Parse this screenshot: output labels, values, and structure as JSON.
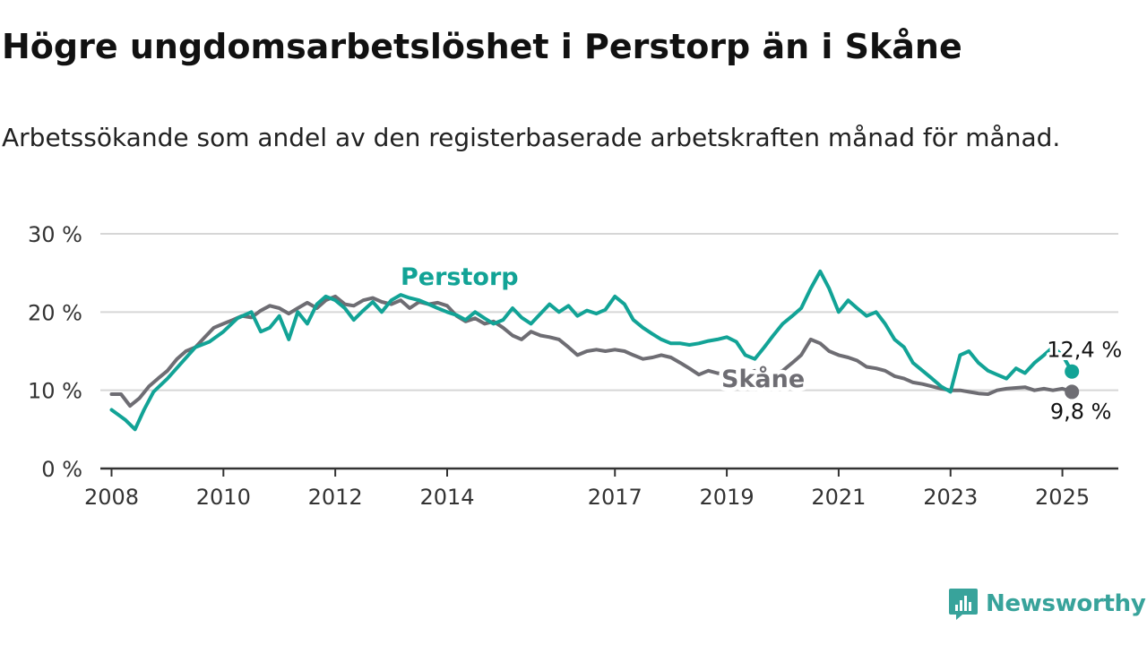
{
  "title": "Högre ungdomsarbetslöshet i Perstorp än i Skåne",
  "subtitle": "Arbetssökande som andel av den registerbaserade arbetskraften månad för månad.",
  "brand": {
    "name": "Newsworthy",
    "color": "#38a39b"
  },
  "colors": {
    "perstorp": "#12a396",
    "skane": "#6e6d73",
    "grid": "#d6d6d6",
    "axis": "#333333"
  },
  "chart_data": {
    "type": "line",
    "title": "Högre ungdomsarbetslöshet i Perstorp än i Skåne",
    "subtitle": "Arbetssökande som andel av den registerbaserade arbetskraften månad för månad.",
    "xlabel": "",
    "ylabel": "",
    "x_ticks": [
      "2008",
      "2010",
      "2012",
      "2014",
      "2017",
      "2019",
      "2021",
      "2023",
      "2025"
    ],
    "y_ticks": [
      "0 %",
      "10 %",
      "20 %",
      "30 %"
    ],
    "ylim": [
      0,
      30
    ],
    "xlim": [
      2007.8,
      2026.0
    ],
    "grid": true,
    "series": [
      {
        "name": "Perstorp",
        "color": "#12a396",
        "end_label": "12,4 %",
        "points": [
          [
            2008.0,
            7.5
          ],
          [
            2008.25,
            6.2
          ],
          [
            2008.42,
            5.0
          ],
          [
            2008.58,
            7.5
          ],
          [
            2008.75,
            9.8
          ],
          [
            2009.0,
            11.5
          ],
          [
            2009.25,
            13.5
          ],
          [
            2009.5,
            15.5
          ],
          [
            2009.75,
            16.2
          ],
          [
            2010.0,
            17.5
          ],
          [
            2010.25,
            19.2
          ],
          [
            2010.5,
            20.0
          ],
          [
            2010.67,
            17.5
          ],
          [
            2010.83,
            18.0
          ],
          [
            2011.0,
            19.5
          ],
          [
            2011.17,
            16.5
          ],
          [
            2011.33,
            20.0
          ],
          [
            2011.5,
            18.5
          ],
          [
            2011.67,
            21.0
          ],
          [
            2011.83,
            22.0
          ],
          [
            2012.0,
            21.5
          ],
          [
            2012.17,
            20.5
          ],
          [
            2012.33,
            19.0
          ],
          [
            2012.5,
            20.2
          ],
          [
            2012.67,
            21.3
          ],
          [
            2012.83,
            20.0
          ],
          [
            2013.0,
            21.5
          ],
          [
            2013.17,
            22.2
          ],
          [
            2013.33,
            21.8
          ],
          [
            2013.5,
            21.5
          ],
          [
            2013.67,
            21.0
          ],
          [
            2013.83,
            20.5
          ],
          [
            2014.0,
            20.0
          ],
          [
            2014.17,
            19.6
          ],
          [
            2014.33,
            19.0
          ],
          [
            2014.5,
            20.0
          ],
          [
            2014.67,
            19.2
          ],
          [
            2014.83,
            18.5
          ],
          [
            2015.0,
            19.0
          ],
          [
            2015.17,
            20.5
          ],
          [
            2015.33,
            19.3
          ],
          [
            2015.5,
            18.5
          ],
          [
            2015.67,
            19.8
          ],
          [
            2015.83,
            21.0
          ],
          [
            2016.0,
            20.0
          ],
          [
            2016.17,
            20.8
          ],
          [
            2016.33,
            19.5
          ],
          [
            2016.5,
            20.2
          ],
          [
            2016.67,
            19.8
          ],
          [
            2016.83,
            20.3
          ],
          [
            2017.0,
            22.0
          ],
          [
            2017.17,
            21.0
          ],
          [
            2017.33,
            19.0
          ],
          [
            2017.5,
            18.0
          ],
          [
            2017.67,
            17.2
          ],
          [
            2017.83,
            16.5
          ],
          [
            2018.0,
            16.0
          ],
          [
            2018.17,
            16.0
          ],
          [
            2018.33,
            15.8
          ],
          [
            2018.5,
            16.0
          ],
          [
            2018.67,
            16.3
          ],
          [
            2018.83,
            16.5
          ],
          [
            2019.0,
            16.8
          ],
          [
            2019.17,
            16.2
          ],
          [
            2019.33,
            14.5
          ],
          [
            2019.5,
            14.0
          ],
          [
            2019.67,
            15.5
          ],
          [
            2019.83,
            17.0
          ],
          [
            2020.0,
            18.5
          ],
          [
            2020.17,
            19.5
          ],
          [
            2020.33,
            20.5
          ],
          [
            2020.5,
            23.0
          ],
          [
            2020.67,
            25.2
          ],
          [
            2020.83,
            23.0
          ],
          [
            2021.0,
            20.0
          ],
          [
            2021.17,
            21.5
          ],
          [
            2021.33,
            20.5
          ],
          [
            2021.5,
            19.5
          ],
          [
            2021.67,
            20.0
          ],
          [
            2021.83,
            18.5
          ],
          [
            2022.0,
            16.5
          ],
          [
            2022.17,
            15.5
          ],
          [
            2022.33,
            13.5
          ],
          [
            2022.5,
            12.5
          ],
          [
            2022.67,
            11.5
          ],
          [
            2022.83,
            10.5
          ],
          [
            2023.0,
            9.8
          ],
          [
            2023.17,
            14.5
          ],
          [
            2023.33,
            15.0
          ],
          [
            2023.5,
            13.5
          ],
          [
            2023.67,
            12.5
          ],
          [
            2023.83,
            12.0
          ],
          [
            2024.0,
            11.5
          ],
          [
            2024.17,
            12.8
          ],
          [
            2024.33,
            12.2
          ],
          [
            2024.5,
            13.5
          ],
          [
            2024.67,
            14.5
          ],
          [
            2024.83,
            15.5
          ],
          [
            2025.0,
            14.5
          ],
          [
            2025.17,
            12.4
          ]
        ]
      },
      {
        "name": "Skåne",
        "color": "#6e6d73",
        "end_label": "9,8 %",
        "points": [
          [
            2008.0,
            9.5
          ],
          [
            2008.17,
            9.5
          ],
          [
            2008.33,
            8.0
          ],
          [
            2008.5,
            9.0
          ],
          [
            2008.67,
            10.5
          ],
          [
            2008.83,
            11.5
          ],
          [
            2009.0,
            12.5
          ],
          [
            2009.17,
            14.0
          ],
          [
            2009.33,
            15.0
          ],
          [
            2009.5,
            15.5
          ],
          [
            2009.67,
            16.8
          ],
          [
            2009.83,
            18.0
          ],
          [
            2010.0,
            18.5
          ],
          [
            2010.17,
            19.0
          ],
          [
            2010.33,
            19.5
          ],
          [
            2010.5,
            19.3
          ],
          [
            2010.67,
            20.2
          ],
          [
            2010.83,
            20.8
          ],
          [
            2011.0,
            20.5
          ],
          [
            2011.17,
            19.8
          ],
          [
            2011.33,
            20.5
          ],
          [
            2011.5,
            21.2
          ],
          [
            2011.67,
            20.5
          ],
          [
            2011.83,
            21.5
          ],
          [
            2012.0,
            22.0
          ],
          [
            2012.17,
            21.0
          ],
          [
            2012.33,
            20.8
          ],
          [
            2012.5,
            21.5
          ],
          [
            2012.67,
            21.8
          ],
          [
            2012.83,
            21.3
          ],
          [
            2013.0,
            21.0
          ],
          [
            2013.17,
            21.5
          ],
          [
            2013.33,
            20.5
          ],
          [
            2013.5,
            21.3
          ],
          [
            2013.67,
            21.0
          ],
          [
            2013.83,
            21.2
          ],
          [
            2014.0,
            20.8
          ],
          [
            2014.17,
            19.5
          ],
          [
            2014.33,
            18.8
          ],
          [
            2014.5,
            19.2
          ],
          [
            2014.67,
            18.5
          ],
          [
            2014.83,
            18.8
          ],
          [
            2015.0,
            18.0
          ],
          [
            2015.17,
            17.0
          ],
          [
            2015.33,
            16.5
          ],
          [
            2015.5,
            17.5
          ],
          [
            2015.67,
            17.0
          ],
          [
            2015.83,
            16.8
          ],
          [
            2016.0,
            16.5
          ],
          [
            2016.17,
            15.5
          ],
          [
            2016.33,
            14.5
          ],
          [
            2016.5,
            15.0
          ],
          [
            2016.67,
            15.2
          ],
          [
            2016.83,
            15.0
          ],
          [
            2017.0,
            15.2
          ],
          [
            2017.17,
            15.0
          ],
          [
            2017.33,
            14.5
          ],
          [
            2017.5,
            14.0
          ],
          [
            2017.67,
            14.2
          ],
          [
            2017.83,
            14.5
          ],
          [
            2018.0,
            14.2
          ],
          [
            2018.17,
            13.5
          ],
          [
            2018.33,
            12.8
          ],
          [
            2018.5,
            12.0
          ],
          [
            2018.67,
            12.5
          ],
          [
            2018.83,
            12.2
          ],
          [
            2019.0,
            12.0
          ],
          [
            2019.17,
            12.3
          ],
          [
            2019.33,
            12.0
          ],
          [
            2019.5,
            12.5
          ],
          [
            2019.67,
            12.2
          ],
          [
            2019.83,
            12.0
          ],
          [
            2020.0,
            12.5
          ],
          [
            2020.17,
            13.5
          ],
          [
            2020.33,
            14.5
          ],
          [
            2020.5,
            16.5
          ],
          [
            2020.67,
            16.0
          ],
          [
            2020.83,
            15.0
          ],
          [
            2021.0,
            14.5
          ],
          [
            2021.17,
            14.2
          ],
          [
            2021.33,
            13.8
          ],
          [
            2021.5,
            13.0
          ],
          [
            2021.67,
            12.8
          ],
          [
            2021.83,
            12.5
          ],
          [
            2022.0,
            11.8
          ],
          [
            2022.17,
            11.5
          ],
          [
            2022.33,
            11.0
          ],
          [
            2022.5,
            10.8
          ],
          [
            2022.67,
            10.5
          ],
          [
            2022.83,
            10.2
          ],
          [
            2023.0,
            10.0
          ],
          [
            2023.17,
            10.0
          ],
          [
            2023.33,
            9.8
          ],
          [
            2023.5,
            9.6
          ],
          [
            2023.67,
            9.5
          ],
          [
            2023.83,
            10.0
          ],
          [
            2024.0,
            10.2
          ],
          [
            2024.17,
            10.3
          ],
          [
            2024.33,
            10.4
          ],
          [
            2024.5,
            10.0
          ],
          [
            2024.67,
            10.2
          ],
          [
            2024.83,
            10.0
          ],
          [
            2025.0,
            10.2
          ],
          [
            2025.17,
            9.8
          ]
        ]
      }
    ]
  }
}
